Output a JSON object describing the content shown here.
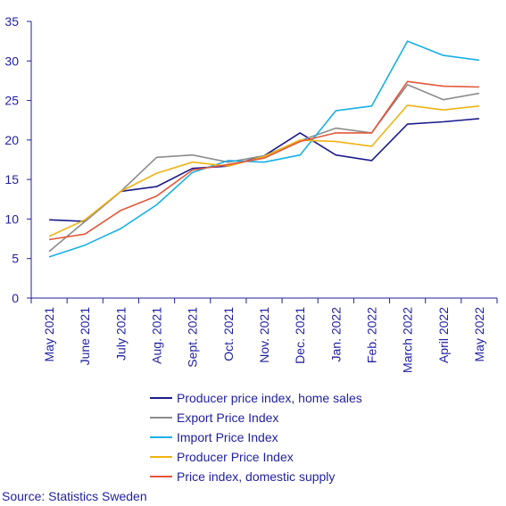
{
  "chart_data": {
    "type": "line",
    "title": "",
    "xlabel": "",
    "ylabel": "",
    "ylim": [
      0,
      35
    ],
    "yticks": [
      0,
      5,
      10,
      15,
      20,
      25,
      30,
      35
    ],
    "grid": false,
    "legend_position": "bottom",
    "categories": [
      "May 2021",
      "June 2021",
      "July 2021",
      "Aug. 2021",
      "Sept. 2021",
      "Oct. 2021",
      "Nov. 2021",
      "Dec. 2021",
      "Jan. 2022",
      "Feb. 2022",
      "March 2022",
      "April 2022",
      "May 2022"
    ],
    "series": [
      {
        "name": "Producer price index, home sales",
        "color": "#1b1b8c",
        "values": [
          9.9,
          9.7,
          13.5,
          14.1,
          16.4,
          16.7,
          18.0,
          20.9,
          18.1,
          17.4,
          22.0,
          22.3,
          22.7
        ]
      },
      {
        "name": "Export Price Index",
        "color": "#8c8c8c",
        "values": [
          5.9,
          9.7,
          13.5,
          17.8,
          18.1,
          17.2,
          18.0,
          19.9,
          21.5,
          20.9,
          27.0,
          25.1,
          25.9
        ]
      },
      {
        "name": "Import Price Index",
        "color": "#16b0e6",
        "values": [
          5.2,
          6.7,
          8.8,
          11.8,
          15.9,
          17.4,
          17.2,
          18.1,
          23.7,
          24.3,
          32.5,
          30.7,
          30.1
        ]
      },
      {
        "name": "Producer Price Index",
        "color": "#f0b313",
        "values": [
          7.8,
          9.9,
          13.5,
          15.8,
          17.2,
          16.7,
          17.9,
          20.0,
          19.8,
          19.2,
          24.4,
          23.8,
          24.3
        ]
      },
      {
        "name": "Price index, domestic supply",
        "color": "#e3573a",
        "values": [
          7.4,
          8.1,
          11.1,
          12.9,
          16.2,
          16.9,
          17.7,
          19.8,
          20.9,
          20.9,
          27.4,
          26.8,
          26.7
        ]
      }
    ]
  },
  "source": "Source: Statistics Sweden"
}
